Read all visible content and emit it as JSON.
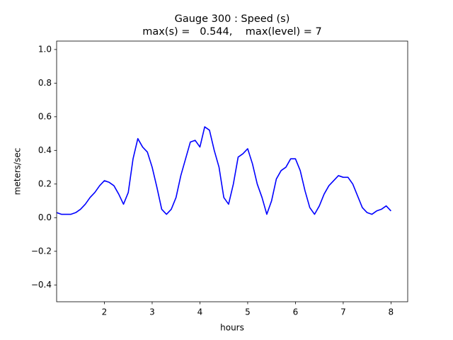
{
  "chart_data": {
    "type": "line",
    "title": "Gauge 300 : Speed (s)",
    "subtitle": "max(s) =   0.544,    max(level) = 7",
    "x_label": "hours",
    "y_label": "meters/sec",
    "xlim": [
      1.0,
      8.35
    ],
    "ylim": [
      -0.5,
      1.05
    ],
    "xticks": [
      2,
      3,
      4,
      5,
      6,
      7,
      8
    ],
    "yticks": [
      {
        "value": -0.4,
        "label": "−0.4"
      },
      {
        "value": -0.2,
        "label": "−0.2"
      },
      {
        "value": 0,
        "label": "0.0"
      },
      {
        "value": 0.2,
        "label": "0.2"
      },
      {
        "value": 0.4,
        "label": "0.4"
      },
      {
        "value": 0.6,
        "label": "0.6"
      },
      {
        "value": 0.8,
        "label": "0.8"
      },
      {
        "value": 1.0,
        "label": "1.0"
      }
    ],
    "x": [
      1.0,
      1.1,
      1.2,
      1.3,
      1.4,
      1.5,
      1.6,
      1.7,
      1.8,
      1.9,
      2.0,
      2.1,
      2.2,
      2.3,
      2.4,
      2.5,
      2.6,
      2.7,
      2.8,
      2.9,
      3.0,
      3.1,
      3.2,
      3.3,
      3.4,
      3.5,
      3.6,
      3.7,
      3.8,
      3.9,
      4.0,
      4.1,
      4.2,
      4.3,
      4.4,
      4.5,
      4.6,
      4.7,
      4.8,
      4.9,
      5.0,
      5.1,
      5.2,
      5.3,
      5.4,
      5.5,
      5.6,
      5.7,
      5.8,
      5.9,
      6.0,
      6.1,
      6.2,
      6.3,
      6.4,
      6.5,
      6.6,
      6.7,
      6.8,
      6.9,
      7.0,
      7.1,
      7.2,
      7.3,
      7.4,
      7.5,
      7.6,
      7.7,
      7.8,
      7.9,
      8.0
    ],
    "series": [
      {
        "color": "#0000ff",
        "values": [
          0.03,
          0.02,
          0.02,
          0.02,
          0.03,
          0.05,
          0.08,
          0.12,
          0.15,
          0.19,
          0.22,
          0.21,
          0.19,
          0.14,
          0.08,
          0.15,
          0.35,
          0.47,
          0.42,
          0.39,
          0.3,
          0.18,
          0.05,
          0.02,
          0.05,
          0.12,
          0.25,
          0.35,
          0.45,
          0.46,
          0.42,
          0.54,
          0.52,
          0.4,
          0.3,
          0.12,
          0.08,
          0.2,
          0.36,
          0.38,
          0.41,
          0.32,
          0.2,
          0.12,
          0.02,
          0.1,
          0.23,
          0.28,
          0.3,
          0.35,
          0.35,
          0.28,
          0.16,
          0.06,
          0.02,
          0.07,
          0.14,
          0.19,
          0.22,
          0.25,
          0.24,
          0.24,
          0.2,
          0.13,
          0.06,
          0.03,
          0.02,
          0.04,
          0.05,
          0.07,
          0.04
        ]
      }
    ]
  }
}
